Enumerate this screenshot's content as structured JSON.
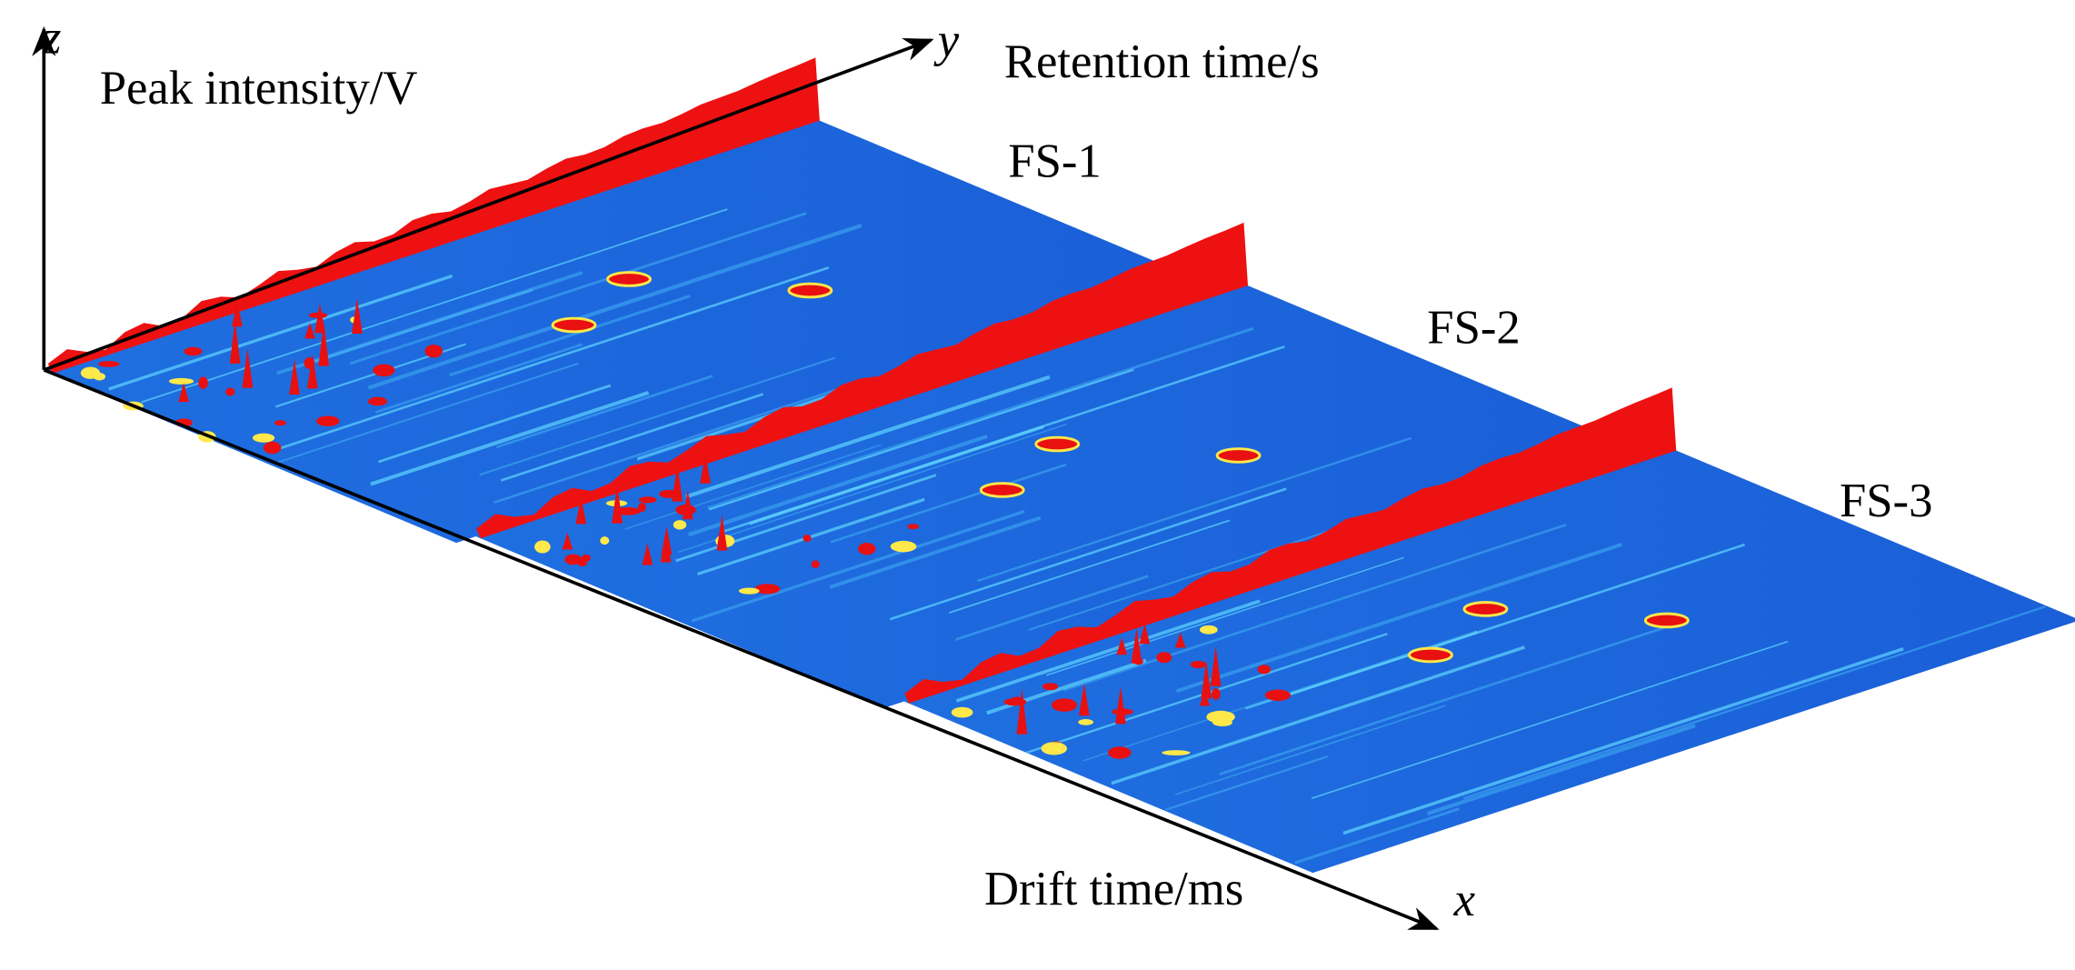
{
  "axes": {
    "z": {
      "letter": "z",
      "label": "Peak intensity/V"
    },
    "y": {
      "letter": "y",
      "label": "Retention time/s"
    },
    "x": {
      "letter": "x",
      "label": "Drift time/ms"
    }
  },
  "samples": [
    "FS-1",
    "FS-2",
    "FS-3"
  ]
}
